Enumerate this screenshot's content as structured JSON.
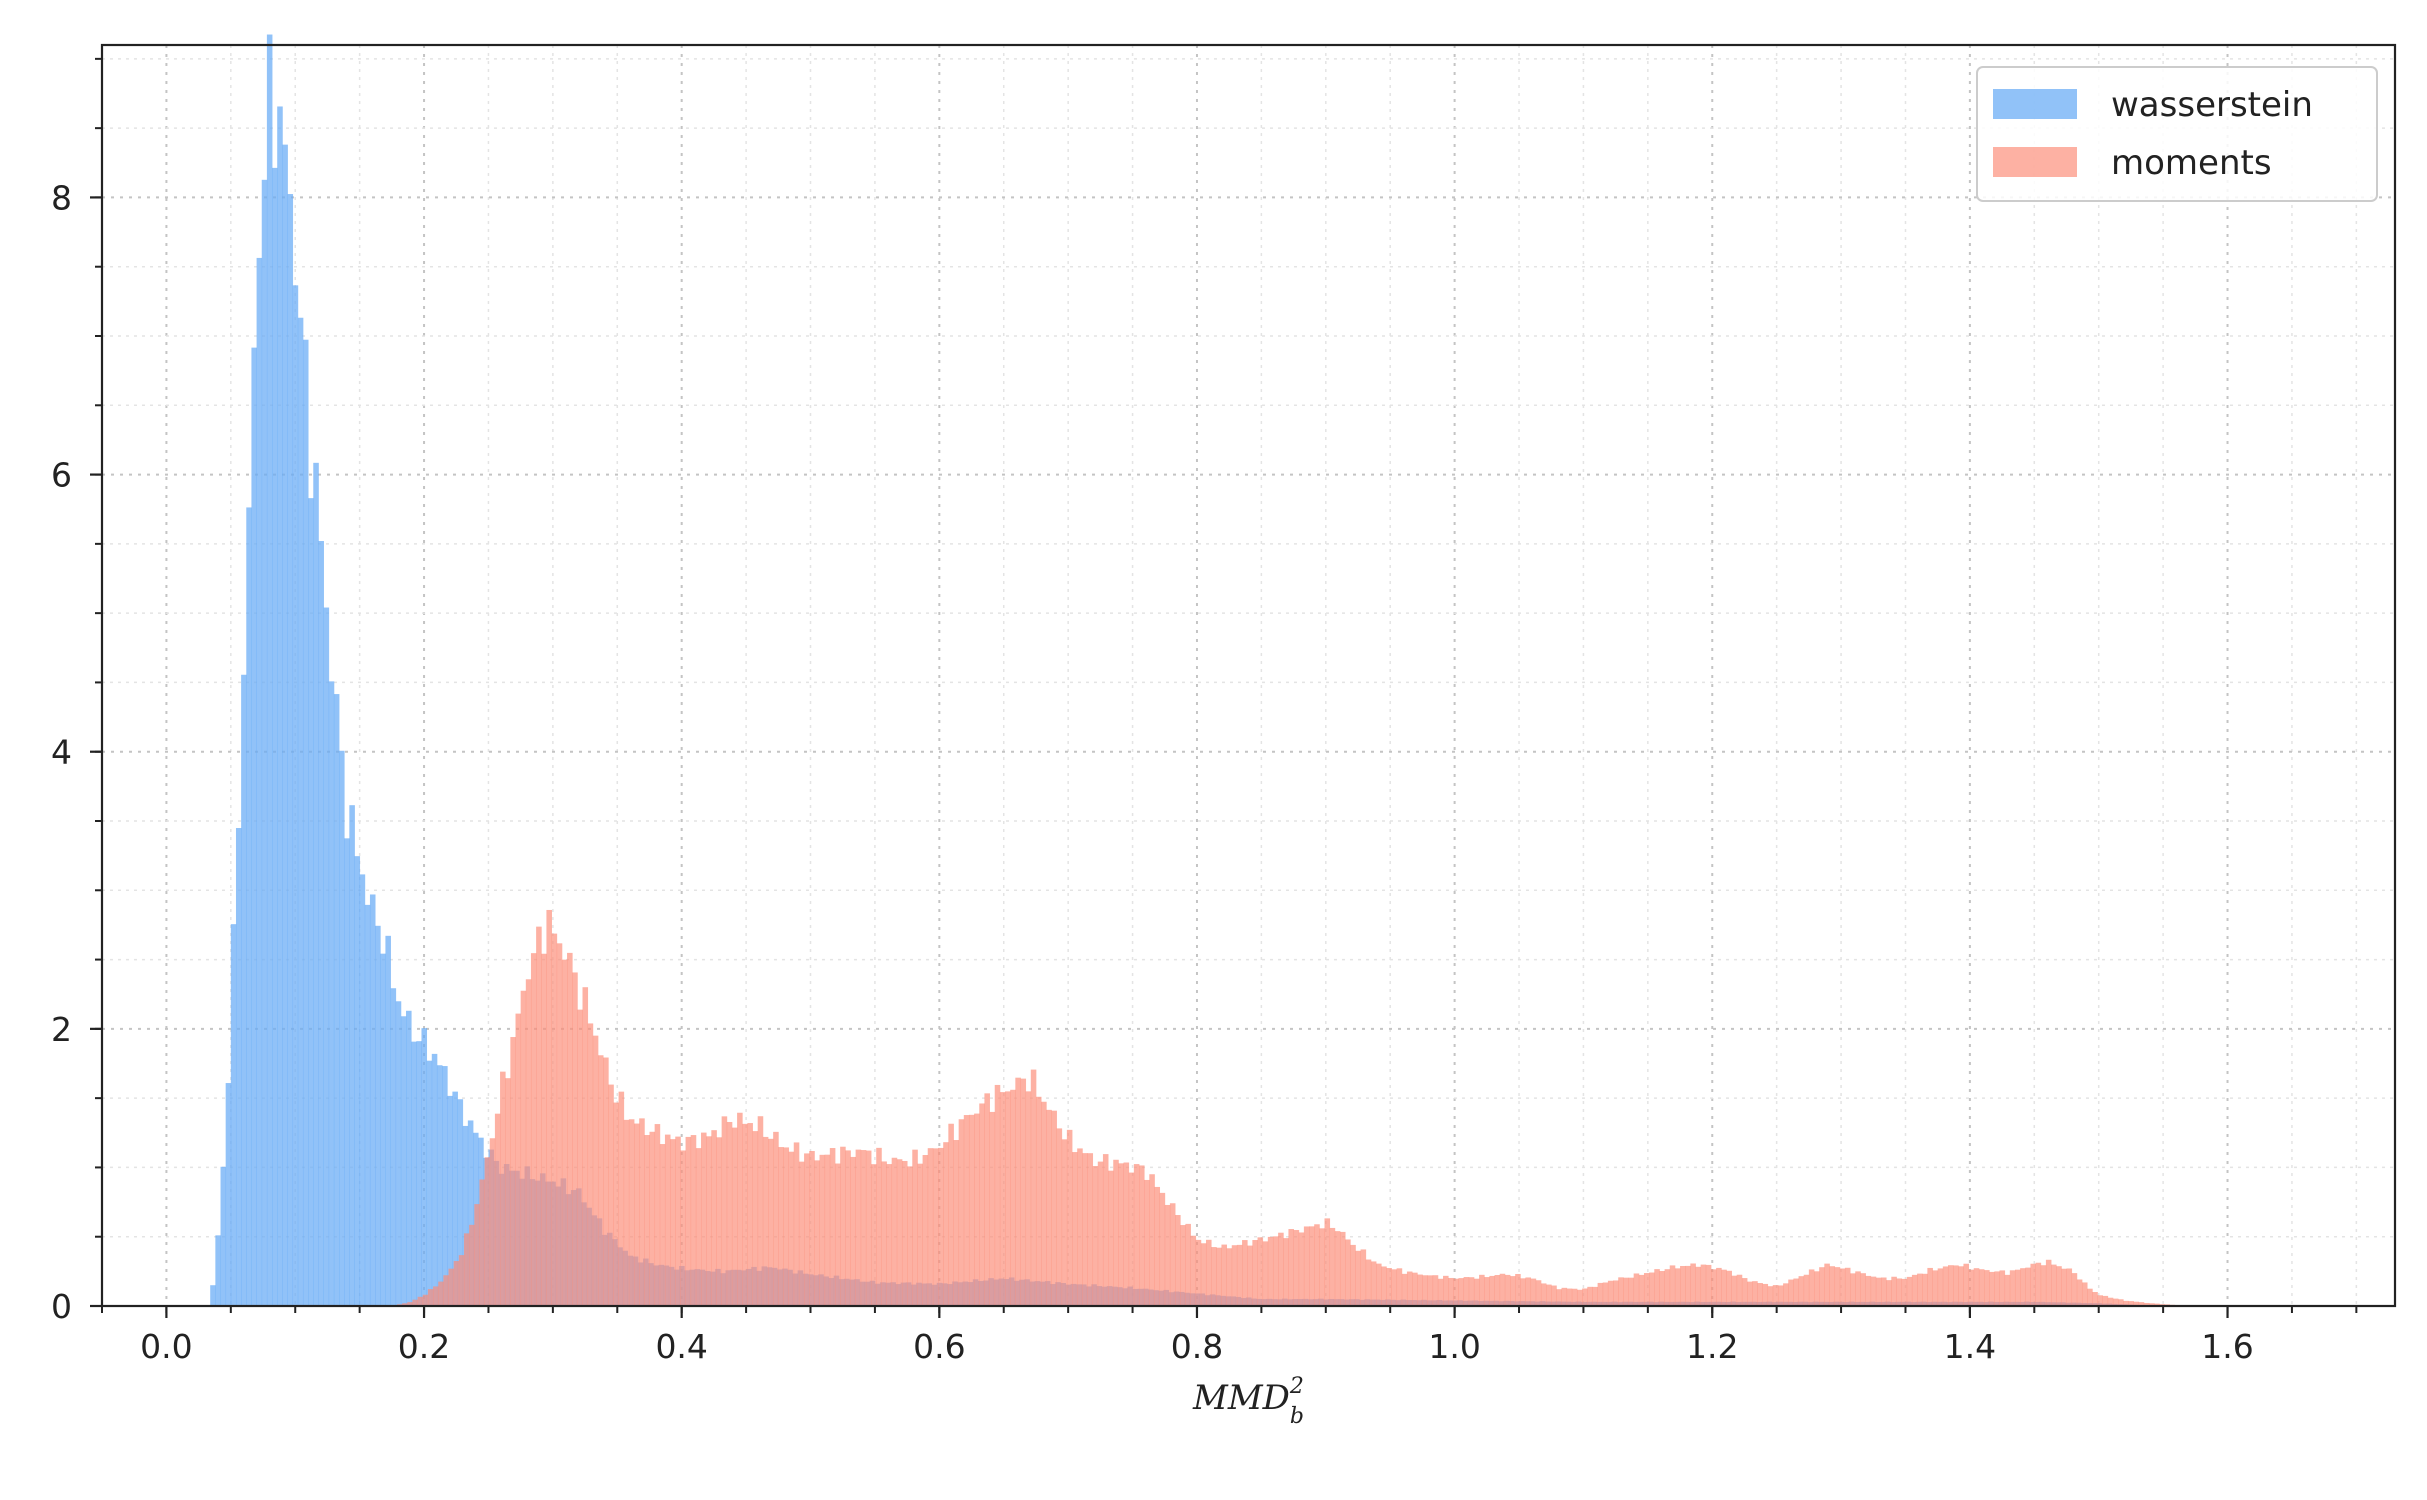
{
  "chart_data": {
    "type": "histogram",
    "xlabel": "MMD",
    "xlabel_superscript": "2",
    "xlabel_subscript": "b",
    "xlim": [
      -0.05,
      1.73
    ],
    "ylim": [
      0,
      9.1
    ],
    "xticks": [
      0.0,
      0.2,
      0.4,
      0.6,
      0.8,
      1.0,
      1.2,
      1.4,
      1.6
    ],
    "xtick_labels": [
      "0.0",
      "0.2",
      "0.4",
      "0.6",
      "0.8",
      "1.0",
      "1.2",
      "1.4",
      "1.6"
    ],
    "yticks": [
      0,
      2,
      4,
      6,
      8
    ],
    "ytick_labels": [
      "0",
      "2",
      "4",
      "6",
      "8"
    ],
    "grid": true,
    "legend_position": "top-right",
    "bin_width": 0.004,
    "series": [
      {
        "name": "wasserstein",
        "color": "#66aaf5",
        "opacity": 0.72,
        "density_profile": [
          [
            0.034,
            0.0
          ],
          [
            0.038,
            0.3
          ],
          [
            0.042,
            0.7
          ],
          [
            0.046,
            1.3
          ],
          [
            0.05,
            2.1
          ],
          [
            0.055,
            3.3
          ],
          [
            0.06,
            4.6
          ],
          [
            0.065,
            6.0
          ],
          [
            0.07,
            7.3
          ],
          [
            0.075,
            8.3
          ],
          [
            0.08,
            8.6
          ],
          [
            0.085,
            8.7
          ],
          [
            0.09,
            8.5
          ],
          [
            0.095,
            8.0
          ],
          [
            0.1,
            7.6
          ],
          [
            0.105,
            7.0
          ],
          [
            0.11,
            6.4
          ],
          [
            0.115,
            6.0
          ],
          [
            0.12,
            5.5
          ],
          [
            0.125,
            4.9
          ],
          [
            0.13,
            4.5
          ],
          [
            0.135,
            4.0
          ],
          [
            0.14,
            3.6
          ],
          [
            0.145,
            3.4
          ],
          [
            0.15,
            3.2
          ],
          [
            0.155,
            3.0
          ],
          [
            0.16,
            2.85
          ],
          [
            0.165,
            2.75
          ],
          [
            0.17,
            2.6
          ],
          [
            0.175,
            2.4
          ],
          [
            0.18,
            2.2
          ],
          [
            0.19,
            2.0
          ],
          [
            0.2,
            1.9
          ],
          [
            0.21,
            1.78
          ],
          [
            0.22,
            1.6
          ],
          [
            0.23,
            1.4
          ],
          [
            0.24,
            1.25
          ],
          [
            0.25,
            1.1
          ],
          [
            0.26,
            1.0
          ],
          [
            0.28,
            0.95
          ],
          [
            0.3,
            0.9
          ],
          [
            0.32,
            0.82
          ],
          [
            0.34,
            0.55
          ],
          [
            0.36,
            0.36
          ],
          [
            0.38,
            0.3
          ],
          [
            0.4,
            0.27
          ],
          [
            0.43,
            0.25
          ],
          [
            0.47,
            0.28
          ],
          [
            0.5,
            0.23
          ],
          [
            0.55,
            0.17
          ],
          [
            0.6,
            0.16
          ],
          [
            0.65,
            0.2
          ],
          [
            0.7,
            0.16
          ],
          [
            0.75,
            0.13
          ],
          [
            0.8,
            0.09
          ],
          [
            0.85,
            0.05
          ],
          [
            0.9,
            0.05
          ],
          [
            1.0,
            0.04
          ],
          [
            1.1,
            0.03
          ],
          [
            1.2,
            0.03
          ],
          [
            1.3,
            0.03
          ],
          [
            1.4,
            0.03
          ],
          [
            1.45,
            0.03
          ],
          [
            1.5,
            0.02
          ],
          [
            1.55,
            0.0
          ]
        ]
      },
      {
        "name": "moments",
        "color": "#fc8c78",
        "opacity": 0.68,
        "density_profile": [
          [
            0.175,
            0.0
          ],
          [
            0.19,
            0.03
          ],
          [
            0.2,
            0.08
          ],
          [
            0.21,
            0.15
          ],
          [
            0.22,
            0.25
          ],
          [
            0.23,
            0.4
          ],
          [
            0.24,
            0.7
          ],
          [
            0.25,
            1.1
          ],
          [
            0.26,
            1.55
          ],
          [
            0.27,
            1.95
          ],
          [
            0.28,
            2.4
          ],
          [
            0.29,
            2.65
          ],
          [
            0.295,
            2.78
          ],
          [
            0.3,
            2.7
          ],
          [
            0.31,
            2.55
          ],
          [
            0.32,
            2.3
          ],
          [
            0.33,
            2.05
          ],
          [
            0.34,
            1.75
          ],
          [
            0.35,
            1.5
          ],
          [
            0.36,
            1.35
          ],
          [
            0.38,
            1.25
          ],
          [
            0.4,
            1.18
          ],
          [
            0.42,
            1.22
          ],
          [
            0.44,
            1.35
          ],
          [
            0.46,
            1.3
          ],
          [
            0.48,
            1.15
          ],
          [
            0.5,
            1.08
          ],
          [
            0.52,
            1.1
          ],
          [
            0.54,
            1.12
          ],
          [
            0.56,
            1.05
          ],
          [
            0.58,
            1.05
          ],
          [
            0.6,
            1.15
          ],
          [
            0.62,
            1.35
          ],
          [
            0.64,
            1.5
          ],
          [
            0.66,
            1.6
          ],
          [
            0.67,
            1.65
          ],
          [
            0.68,
            1.5
          ],
          [
            0.7,
            1.2
          ],
          [
            0.72,
            1.05
          ],
          [
            0.74,
            1.03
          ],
          [
            0.76,
            0.98
          ],
          [
            0.78,
            0.72
          ],
          [
            0.8,
            0.48
          ],
          [
            0.82,
            0.42
          ],
          [
            0.84,
            0.46
          ],
          [
            0.86,
            0.5
          ],
          [
            0.88,
            0.55
          ],
          [
            0.9,
            0.6
          ],
          [
            0.91,
            0.55
          ],
          [
            0.92,
            0.45
          ],
          [
            0.94,
            0.3
          ],
          [
            0.96,
            0.25
          ],
          [
            0.98,
            0.22
          ],
          [
            1.0,
            0.2
          ],
          [
            1.02,
            0.21
          ],
          [
            1.04,
            0.23
          ],
          [
            1.06,
            0.2
          ],
          [
            1.08,
            0.13
          ],
          [
            1.1,
            0.12
          ],
          [
            1.12,
            0.18
          ],
          [
            1.15,
            0.24
          ],
          [
            1.17,
            0.28
          ],
          [
            1.19,
            0.3
          ],
          [
            1.21,
            0.26
          ],
          [
            1.23,
            0.18
          ],
          [
            1.25,
            0.14
          ],
          [
            1.27,
            0.22
          ],
          [
            1.29,
            0.3
          ],
          [
            1.31,
            0.25
          ],
          [
            1.33,
            0.2
          ],
          [
            1.35,
            0.2
          ],
          [
            1.37,
            0.26
          ],
          [
            1.39,
            0.3
          ],
          [
            1.41,
            0.26
          ],
          [
            1.43,
            0.24
          ],
          [
            1.45,
            0.3
          ],
          [
            1.46,
            0.32
          ],
          [
            1.48,
            0.25
          ],
          [
            1.49,
            0.15
          ],
          [
            1.5,
            0.08
          ],
          [
            1.52,
            0.04
          ],
          [
            1.54,
            0.02
          ],
          [
            1.57,
            0.0
          ]
        ]
      }
    ]
  }
}
